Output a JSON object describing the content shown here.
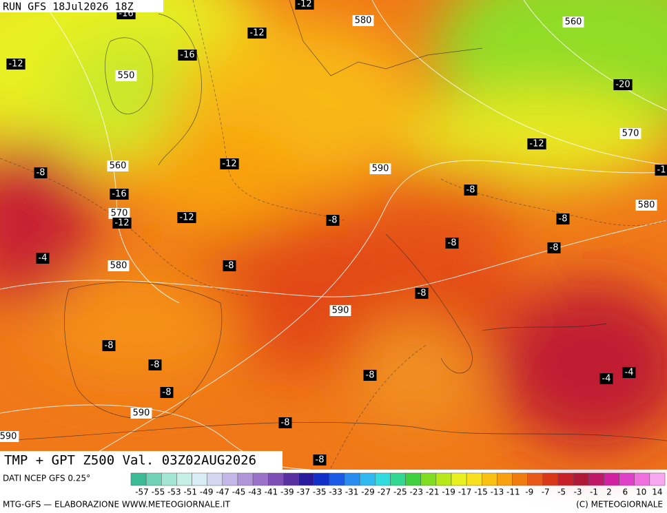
{
  "header": {
    "run": "RUN GFS 18Jul2026 18Z"
  },
  "title": "TMP + GPT Z500 Val. 03Z02AUG2026",
  "footer": {
    "source": "DATI NCEP GFS 0.25°",
    "credit": "MTG-GFS — ELABORAZIONE WWW.METEOGIORNALE.IT",
    "copyright": "(C) METEOGIORNALE"
  },
  "colorbar": {
    "labels": [
      -57,
      -55,
      -53,
      -51,
      -49,
      -47,
      -45,
      -43,
      -41,
      -39,
      -37,
      -35,
      -33,
      -31,
      -29,
      -27,
      -25,
      -23,
      -21,
      -19,
      -17,
      -15,
      -13,
      -11,
      -9,
      -7,
      -5,
      -3,
      -1,
      2,
      6,
      10,
      14
    ],
    "colors": [
      "#3cb996",
      "#6fd1b5",
      "#a3e6d2",
      "#c5f0e6",
      "#d8ecf5",
      "#d4d6f2",
      "#c4b8e8",
      "#b095d8",
      "#9a72c8",
      "#7d4fb4",
      "#5a2fa0",
      "#2a1a9c",
      "#1030c8",
      "#1a5ae6",
      "#2a8cf0",
      "#30b8f0",
      "#30dce0",
      "#30d890",
      "#40d040",
      "#80dc20",
      "#b8e818",
      "#e8f020",
      "#f8e020",
      "#f8c010",
      "#f8a010",
      "#f07c10",
      "#e85818",
      "#d83818",
      "#c82028",
      "#b01838",
      "#c01868",
      "#d020a0",
      "#e040c8",
      "#f070e0",
      "#f8a8f0"
    ]
  },
  "map_labels": [
    "-12",
    "-16",
    "580",
    "-12",
    "560",
    "-12",
    "-16",
    "550",
    "-20",
    "570",
    "-12",
    "560",
    "-12",
    "590",
    "-8",
    "-1",
    "-16",
    "-8",
    "570",
    "-12",
    "-12",
    "-8",
    "-8",
    "580",
    "-8",
    "-8",
    "-4",
    "580",
    "-8",
    "-8",
    "590",
    "-8",
    "-8",
    "-8",
    "-4",
    "-4",
    "-8",
    "590",
    "-8",
    "590",
    "-8"
  ]
}
